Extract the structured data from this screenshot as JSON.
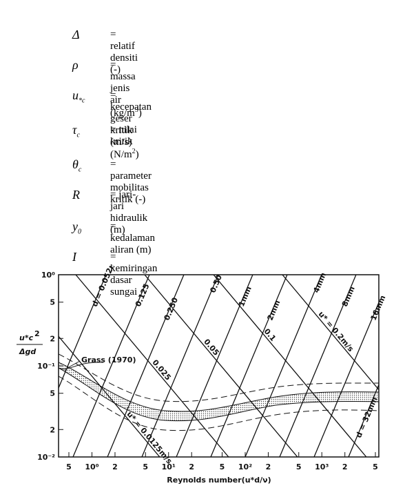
{
  "definitions": [
    {
      "symbol": "Δ",
      "text": "= relatif densiti (-)"
    },
    {
      "symbol": "ρ",
      "text": "= massa jenis air (kg/m",
      "sup": "3",
      "tail": ")"
    },
    {
      "symbol": "u",
      "sub": "*c",
      "text": "= kecepatan geser kritik (m/s)"
    },
    {
      "symbol": "τ",
      "sub": "c",
      "text": "= nilai kritik (N/m",
      "sup": "2",
      "tail": ")"
    },
    {
      "symbol": "θ",
      "sub": "c",
      "text": "= parameter mobilitas kritik (-)"
    },
    {
      "symbol": "R",
      "text": "= jari-jari hidraulik (m)"
    },
    {
      "symbol": "y",
      "sub": "0",
      "text": "= kedalaman aliran (m)"
    },
    {
      "symbol": "I",
      "text": "= kemiringan dasar sungai"
    }
  ],
  "figure": {
    "y_label": {
      "numerator": "u*c",
      "sup": "2",
      "denominator": "Δgd"
    },
    "x_label": "Reynolds number(u*d/ν)",
    "x_tick_labels": [
      "5",
      "10⁰",
      "2",
      "5",
      "10¹",
      "2",
      "5",
      "10²",
      "2",
      "5",
      "10³",
      "2",
      "5"
    ],
    "y_tick_labels": [
      "10⁰",
      "5",
      "2",
      "10⁻¹",
      "5",
      "2",
      "10⁻²"
    ],
    "d_lines": [
      "d = 0.052mm",
      "0.125",
      "0.250",
      "0.50",
      "1mm",
      "2mm",
      "4mm",
      "8mm",
      "16mm",
      "d = 32mm"
    ],
    "u_lines": [
      "u* = 0.0125m/s",
      "0.025",
      "0.05",
      "0.1",
      "u* = 0.2m/s"
    ],
    "curve_label": "Grass (1970)"
  }
}
